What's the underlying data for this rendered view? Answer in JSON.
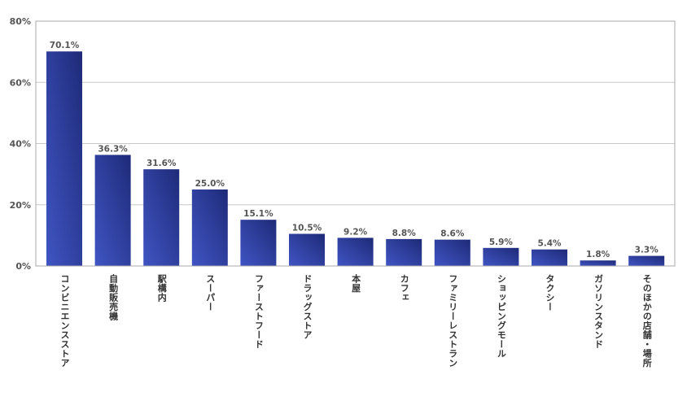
{
  "chart_data": {
    "type": "bar",
    "categories": [
      "コンビニエンスストア",
      "自動販売機",
      "駅構内",
      "スーパー",
      "ファーストフード",
      "ドラッグストア",
      "本屋",
      "カフェ",
      "ファミリーレストラン",
      "ショッピングモール",
      "タクシー",
      "ガソリンスタンド",
      "そのほかの店舗・場所"
    ],
    "values": [
      70.1,
      36.3,
      31.6,
      25.0,
      15.1,
      10.5,
      9.2,
      8.8,
      8.6,
      5.9,
      5.4,
      1.8,
      3.3
    ],
    "value_labels": [
      "70.1%",
      "36.3%",
      "31.6%",
      "25.0%",
      "15.1%",
      "10.5%",
      "9.2%",
      "8.8%",
      "8.6%",
      "5.9%",
      "5.4%",
      "1.8%",
      "3.3%"
    ],
    "yticks": [
      0,
      20,
      40,
      60,
      80
    ],
    "ytick_labels": [
      "0%",
      "20%",
      "40%",
      "60%",
      "80%"
    ],
    "ylim": [
      0,
      80
    ],
    "grid": true,
    "colors": {
      "bar_dark": "#1e2a78",
      "bar_light": "#4055c4",
      "grid": "#c8c8c8",
      "frame": "#aaaaaa"
    }
  }
}
